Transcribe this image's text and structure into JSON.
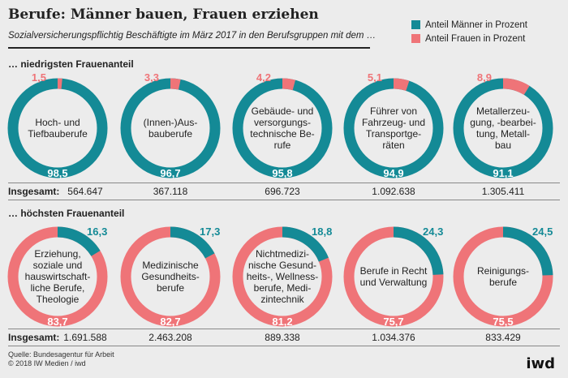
{
  "title": "Berufe: Männer bauen, Frauen erziehen",
  "subtitle": "Sozialversicherungspflichtig Beschäftigte im März 2017 in den Berufsgruppen mit dem …",
  "legend": [
    {
      "label": "Anteil Männer in Prozent",
      "color": "#148a96"
    },
    {
      "label": "Anteil Frauen in Prozent",
      "color": "#ef7478"
    }
  ],
  "totals_label": "Insgesamt:",
  "source_lines": [
    "Quelle: Bundesagentur für Arbeit",
    "© 2018 IW Medien / iwd"
  ],
  "logo": "iwd",
  "chart_data": {
    "type": "pie",
    "colors": {
      "men": "#148a96",
      "women": "#ef7478"
    },
    "groups": [
      {
        "title": "… niedrigsten Frauenanteil",
        "categories": [
          {
            "label": [
              "Hoch- und",
              "Tiefbauberufe"
            ],
            "men": "98,5",
            "women": "1,5",
            "men_value": 98.5,
            "women_value": 1.5,
            "total": "564.647"
          },
          {
            "label": [
              "(Innen-)Aus-",
              "bauberufe"
            ],
            "men": "96,7",
            "women": "3,3",
            "men_value": 96.7,
            "women_value": 3.3,
            "total": "367.118"
          },
          {
            "label": [
              "Gebäude- und",
              "versorgungs-",
              "technische Be-",
              "rufe"
            ],
            "men": "95,8",
            "women": "4,2",
            "men_value": 95.8,
            "women_value": 4.2,
            "total": "696.723"
          },
          {
            "label": [
              "Führer von",
              "Fahrzeug- und",
              "Transportge-",
              "räten"
            ],
            "men": "94,9",
            "women": "5,1",
            "men_value": 94.9,
            "women_value": 5.1,
            "total": "1.092.638"
          },
          {
            "label": [
              "Metallerzeu-",
              "gung, -bearbei-",
              "tung, Metall-",
              "bau"
            ],
            "men": "91,1",
            "women": "8,9",
            "men_value": 91.1,
            "women_value": 8.9,
            "total": "1.305.411"
          }
        ]
      },
      {
        "title": "… höchsten Frauenanteil",
        "categories": [
          {
            "label": [
              "Erziehung,",
              "soziale und",
              "hauswirtschaft-",
              "liche Berufe,",
              "Theologie"
            ],
            "men": "16,3",
            "women": "83,7",
            "men_value": 16.3,
            "women_value": 83.7,
            "total": "1.691.588"
          },
          {
            "label": [
              "Medizinische",
              "Gesundheits-",
              "berufe"
            ],
            "men": "17,3",
            "women": "82,7",
            "men_value": 17.3,
            "women_value": 82.7,
            "total": "2.463.208"
          },
          {
            "label": [
              "Nichtmedizi-",
              "nische Gesund-",
              "heits-, Wellness-",
              "berufe, Medi-",
              "zintechnik"
            ],
            "men": "18,8",
            "women": "81,2",
            "men_value": 18.8,
            "women_value": 81.2,
            "total": "889.338"
          },
          {
            "label": [
              "Berufe in Recht",
              "und Verwaltung"
            ],
            "men": "24,3",
            "women": "75,7",
            "men_value": 24.3,
            "women_value": 75.7,
            "total": "1.034.376"
          },
          {
            "label": [
              "Reinigungs-",
              "berufe"
            ],
            "men": "24,5",
            "women": "75,5",
            "men_value": 24.5,
            "women_value": 75.5,
            "total": "833.429"
          }
        ]
      }
    ]
  }
}
